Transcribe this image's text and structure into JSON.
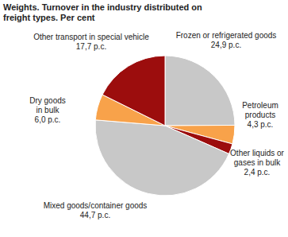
{
  "chart_data": {
    "type": "pie",
    "title": "Weights. Turnover in the industry distributed on freight types. Per cent",
    "categories": [
      "Frozen or refrigerated goods",
      "Petroleum products",
      "Other liquids or gases in bulk",
      "Mixed goods/container goods",
      "Dry goods in bulk",
      "Other transport in special vehicle"
    ],
    "values": [
      24.9,
      4.3,
      2.4,
      44.7,
      6.0,
      17.7
    ],
    "value_labels": [
      "24,9 p.c.",
      "4,3 p.c.",
      "2,4 p.c.",
      "44,7 p.c.",
      "6,0 p.c.",
      "17,7 p.c."
    ],
    "colors": [
      "#c8c8c8",
      "#f8a24a",
      "#9c0d0d",
      "#c8c8c8",
      "#f8a24a",
      "#9c0d0d"
    ],
    "data_labels": true
  }
}
